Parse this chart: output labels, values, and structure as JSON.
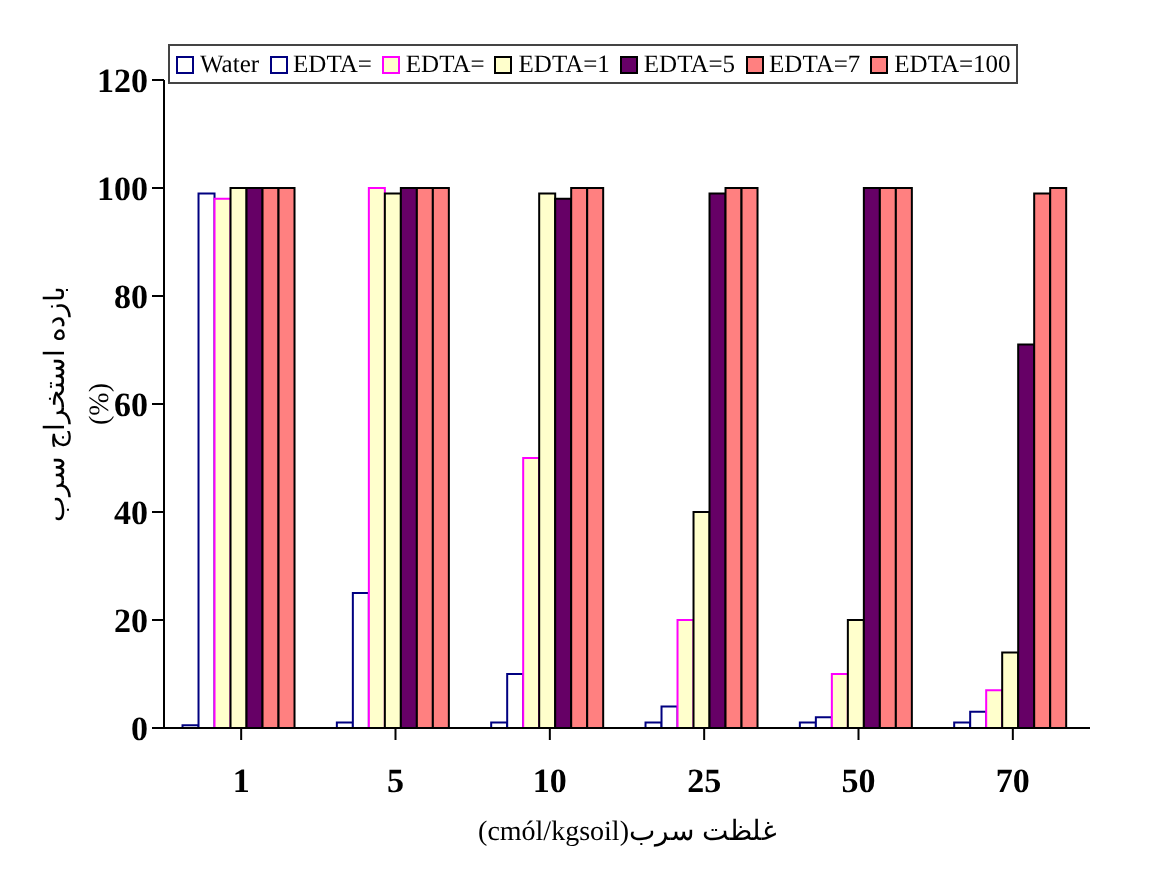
{
  "chart_data": {
    "type": "bar",
    "xlabel": "غلظت سرب(cmól/kgsoil)",
    "ylabel": "بازده استخراج سرب\n(%)",
    "categories": [
      "1",
      "5",
      "10",
      "25",
      "50",
      "70"
    ],
    "series": [
      {
        "name": "Water",
        "color": "#ffffff",
        "values": [
          0.5,
          1,
          1,
          1,
          1,
          1
        ]
      },
      {
        "name": "EDTA=",
        "color": "#ffffff",
        "values": [
          99,
          25,
          10,
          4,
          2,
          3
        ]
      },
      {
        "name": "EDTA=",
        "color": "#ffffcc",
        "values": [
          98,
          100,
          50,
          20,
          10,
          7
        ]
      },
      {
        "name": "EDTA=1",
        "color": "#ffffcc",
        "values": [
          100,
          99,
          99,
          40,
          20,
          14
        ]
      },
      {
        "name": "EDTA=5",
        "color": "#660066",
        "values": [
          100,
          100,
          98,
          99,
          100,
          71
        ]
      },
      {
        "name": "EDTA=7",
        "color": "#ff8080",
        "values": [
          100,
          100,
          100,
          100,
          100,
          99
        ]
      },
      {
        "name": "EDTA=100",
        "color": "#ff8080",
        "values": [
          100,
          100,
          100,
          100,
          100,
          100
        ]
      }
    ],
    "ylim": [
      0,
      120
    ],
    "yticks": [
      0,
      20,
      40,
      60,
      80,
      100,
      120
    ],
    "grid": false,
    "legend": "top"
  }
}
